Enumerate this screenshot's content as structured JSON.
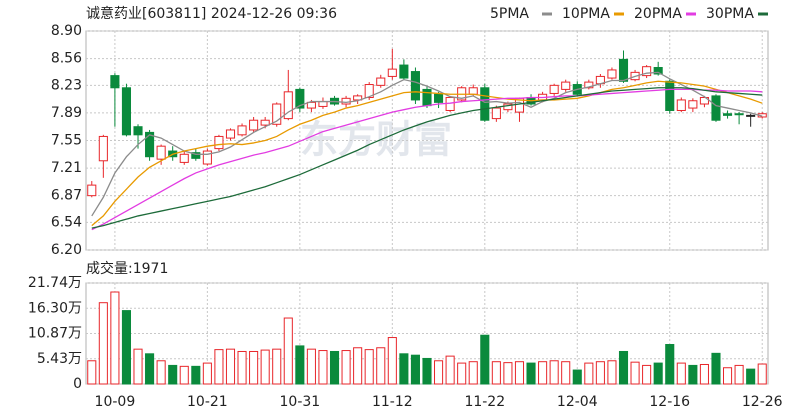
{
  "chart_data": [
    {
      "type": "candlestick",
      "title": "诚意药业[603811] 2024-12-26 09:36",
      "watermark": "东方财富",
      "up_color": "#e8262a",
      "down_color": "#0a8a3c",
      "neutral_color": "#222222",
      "ylim": [
        6.2,
        8.9
      ],
      "yticks": [
        {
          "value": 6.2,
          "label": "6.20"
        },
        6.54,
        6.87,
        7.21,
        7.55,
        7.89,
        8.23,
        8.56,
        {
          "value": 8.9,
          "label": "8.90"
        }
      ],
      "grid": true,
      "open": [
        6.87,
        7.3,
        8.35,
        8.2,
        7.72,
        7.65,
        7.32,
        7.42,
        7.28,
        7.4,
        7.26,
        7.45,
        7.58,
        7.62,
        7.68,
        7.74,
        7.75,
        7.82,
        8.18,
        7.95,
        7.97,
        8.07,
        8.0,
        8.05,
        8.08,
        8.23,
        8.34,
        8.48,
        8.4,
        8.18,
        8.12,
        7.92,
        8.05,
        8.12,
        8.2,
        7.82,
        7.93,
        7.9,
        8.08,
        8.05,
        8.13,
        8.18,
        8.24,
        8.2,
        8.25,
        8.32,
        8.55,
        8.3,
        8.35,
        8.45,
        8.28,
        7.92,
        7.95,
        8.0,
        8.1,
        7.88,
        7.88,
        7.86,
        7.84
      ],
      "high": [
        7.05,
        7.62,
        8.38,
        8.25,
        7.75,
        7.68,
        7.5,
        7.48,
        7.42,
        7.45,
        7.45,
        7.62,
        7.7,
        7.76,
        7.84,
        7.84,
        8.02,
        8.42,
        8.2,
        8.05,
        8.08,
        8.1,
        8.1,
        8.12,
        8.27,
        8.36,
        8.68,
        8.55,
        8.45,
        8.22,
        8.15,
        8.1,
        8.22,
        8.24,
        8.25,
        7.98,
        8.03,
        8.08,
        8.12,
        8.15,
        8.25,
        8.3,
        8.28,
        8.3,
        8.37,
        8.45,
        8.66,
        8.42,
        8.48,
        8.52,
        8.3,
        8.08,
        8.07,
        8.1,
        8.12,
        7.92,
        7.9,
        7.88,
        7.9
      ],
      "low": [
        6.85,
        7.09,
        7.72,
        7.6,
        7.45,
        7.3,
        7.25,
        7.3,
        7.25,
        7.3,
        7.24,
        7.42,
        7.55,
        7.6,
        7.65,
        7.7,
        7.72,
        7.8,
        7.9,
        7.9,
        7.94,
        7.98,
        7.96,
        8.0,
        8.05,
        8.2,
        8.3,
        8.3,
        8.0,
        7.95,
        7.95,
        7.9,
        8.02,
        8.1,
        7.78,
        7.78,
        7.9,
        7.78,
        7.98,
        8.02,
        8.1,
        8.15,
        8.1,
        8.18,
        8.2,
        8.3,
        8.26,
        8.28,
        8.32,
        8.35,
        7.88,
        7.9,
        7.9,
        7.96,
        7.78,
        7.82,
        7.75,
        7.72,
        7.82
      ],
      "close": [
        7.0,
        7.6,
        8.2,
        7.62,
        7.62,
        7.35,
        7.48,
        7.35,
        7.38,
        7.33,
        7.42,
        7.6,
        7.68,
        7.73,
        7.8,
        7.8,
        8.0,
        8.15,
        7.95,
        8.02,
        8.03,
        8.0,
        8.07,
        8.1,
        8.24,
        8.32,
        8.43,
        8.32,
        8.05,
        7.98,
        8.02,
        8.08,
        8.2,
        8.2,
        7.8,
        7.95,
        8.0,
        8.07,
        8.0,
        8.12,
        8.23,
        8.27,
        8.12,
        8.27,
        8.34,
        8.42,
        8.28,
        8.39,
        8.46,
        8.37,
        7.92,
        8.05,
        8.04,
        8.08,
        7.8,
        7.86,
        7.87,
        7.86,
        7.88
      ],
      "series": [
        {
          "name": "5PMA",
          "color": "#8c8c8c",
          "values": [
            6.62,
            6.85,
            7.15,
            7.35,
            7.5,
            7.62,
            7.58,
            7.5,
            7.42,
            7.38,
            7.38,
            7.41,
            7.47,
            7.56,
            7.65,
            7.72,
            7.79,
            7.9,
            7.98,
            8.03,
            8.03,
            8.03,
            8.02,
            8.04,
            8.09,
            8.15,
            8.23,
            8.3,
            8.27,
            8.22,
            8.16,
            8.09,
            8.07,
            8.1,
            8.02,
            8.03,
            8.01,
            8.02,
            7.96,
            8.03,
            8.07,
            8.14,
            8.18,
            8.21,
            8.25,
            8.29,
            8.29,
            8.34,
            8.38,
            8.39,
            8.31,
            8.24,
            8.17,
            8.09,
            7.98,
            7.95,
            7.92,
            7.89,
            7.85
          ]
        },
        {
          "name": "10PMA",
          "color": "#e89a00",
          "values": [
            6.5,
            6.62,
            6.8,
            6.95,
            7.1,
            7.22,
            7.3,
            7.38,
            7.42,
            7.45,
            7.48,
            7.5,
            7.51,
            7.5,
            7.52,
            7.55,
            7.6,
            7.68,
            7.75,
            7.8,
            7.86,
            7.9,
            7.95,
            7.98,
            8.02,
            8.06,
            8.1,
            8.14,
            8.15,
            8.14,
            8.13,
            8.12,
            8.12,
            8.12,
            8.1,
            8.08,
            8.06,
            8.05,
            8.04,
            8.05,
            8.05,
            8.06,
            8.07,
            8.1,
            8.14,
            8.18,
            8.2,
            8.23,
            8.26,
            8.28,
            8.27,
            8.26,
            8.24,
            8.22,
            8.18,
            8.14,
            8.1,
            8.06,
            8.01
          ]
        },
        {
          "name": "20PMA",
          "color": "#e23ce2",
          "values": [
            6.45,
            6.52,
            6.6,
            6.68,
            6.76,
            6.84,
            6.92,
            7.0,
            7.08,
            7.15,
            7.2,
            7.25,
            7.29,
            7.33,
            7.37,
            7.4,
            7.44,
            7.48,
            7.54,
            7.6,
            7.66,
            7.7,
            7.74,
            7.78,
            7.82,
            7.86,
            7.9,
            7.93,
            7.96,
            7.98,
            8.0,
            8.01,
            8.03,
            8.04,
            8.05,
            8.06,
            8.07,
            8.07,
            8.08,
            8.08,
            8.09,
            8.1,
            8.1,
            8.11,
            8.12,
            8.13,
            8.14,
            8.15,
            8.16,
            8.17,
            8.18,
            8.18,
            8.18,
            8.17,
            8.17,
            8.16,
            8.16,
            8.16,
            8.15
          ]
        },
        {
          "name": "30PMA",
          "color": "#1d6b3a",
          "values": [
            6.47,
            6.5,
            6.54,
            6.58,
            6.62,
            6.65,
            6.68,
            6.71,
            6.74,
            6.77,
            6.8,
            6.83,
            6.86,
            6.9,
            6.94,
            6.98,
            7.03,
            7.08,
            7.13,
            7.19,
            7.25,
            7.31,
            7.37,
            7.43,
            7.5,
            7.56,
            7.62,
            7.68,
            7.73,
            7.78,
            7.82,
            7.86,
            7.89,
            7.92,
            7.94,
            7.96,
            7.98,
            8.0,
            8.02,
            8.04,
            8.06,
            8.08,
            8.1,
            8.12,
            8.14,
            8.16,
            8.17,
            8.18,
            8.19,
            8.2,
            8.2,
            8.2,
            8.19,
            8.17,
            8.15,
            8.14,
            8.13,
            8.12,
            8.11
          ]
        }
      ]
    },
    {
      "type": "bar",
      "title": "成交量:1971",
      "up_color": "#e8262a",
      "down_color": "#0a8a3c",
      "categories": [
        null,
        null,
        "10-09",
        null,
        null,
        null,
        null,
        null,
        null,
        null,
        "10-21",
        null,
        null,
        null,
        null,
        null,
        null,
        null,
        "10-31",
        null,
        null,
        null,
        null,
        null,
        null,
        null,
        "11-12",
        null,
        null,
        null,
        null,
        null,
        null,
        null,
        "11-22",
        null,
        null,
        null,
        null,
        null,
        null,
        null,
        "12-04",
        null,
        null,
        null,
        null,
        null,
        null,
        null,
        "12-16",
        null,
        null,
        null,
        null,
        null,
        null,
        null,
        "12-26"
      ],
      "values": [
        5.0,
        17.5,
        19.8,
        15.8,
        7.5,
        6.5,
        5.0,
        4.0,
        3.8,
        3.8,
        4.5,
        7.4,
        7.5,
        7.0,
        7.0,
        7.3,
        7.5,
        14.2,
        8.2,
        7.5,
        7.2,
        7.0,
        7.2,
        7.8,
        7.4,
        7.8,
        10.0,
        6.5,
        6.2,
        5.5,
        5.0,
        6.0,
        4.5,
        4.8,
        10.5,
        4.8,
        4.6,
        4.8,
        4.5,
        4.8,
        5.0,
        4.8,
        3.0,
        4.5,
        4.8,
        5.0,
        7.0,
        4.7,
        4.0,
        4.5,
        8.5,
        4.5,
        4.0,
        4.2,
        6.6,
        3.5,
        4.0,
        3.2,
        4.3
      ],
      "ylim": [
        0,
        21.74
      ],
      "yticks": [
        0,
        {
          "value": 5.43,
          "label": "5.43万"
        },
        {
          "value": 10.87,
          "label": "10.87万"
        },
        {
          "value": 16.3,
          "label": "16.30万"
        },
        {
          "value": 21.74,
          "label": "21.74万"
        }
      ],
      "grid": true
    }
  ]
}
